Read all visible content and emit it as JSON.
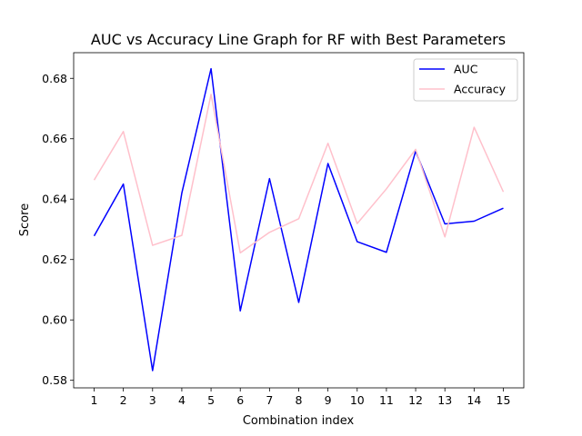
{
  "chart_data": {
    "type": "line",
    "title": "AUC vs Accuracy Line Graph for RF with Best Parameters",
    "xlabel": "Combination index",
    "ylabel": "Score",
    "x": [
      1,
      2,
      3,
      4,
      5,
      6,
      7,
      8,
      9,
      10,
      11,
      12,
      13,
      14,
      15
    ],
    "xlim": [
      0.3,
      15.7
    ],
    "ylim": [
      0.5775,
      0.6885
    ],
    "yticks": [
      0.58,
      0.6,
      0.62,
      0.64,
      0.66,
      0.68
    ],
    "ytick_labels": [
      "0.58",
      "0.60",
      "0.62",
      "0.64",
      "0.66",
      "0.68"
    ],
    "grid": false,
    "legend_position": "top-right",
    "series": [
      {
        "name": "AUC",
        "color": "#0000ff",
        "values": [
          0.6278,
          0.645,
          0.5832,
          0.642,
          0.6832,
          0.603,
          0.6468,
          0.6058,
          0.6518,
          0.6259,
          0.6224,
          0.6559,
          0.6318,
          0.6327,
          0.637
        ]
      },
      {
        "name": "Accuracy",
        "color": "#ffc0cb",
        "values": [
          0.6463,
          0.6624,
          0.6247,
          0.628,
          0.6747,
          0.6222,
          0.629,
          0.6335,
          0.6585,
          0.6319,
          0.6434,
          0.6565,
          0.6275,
          0.6638,
          0.6424
        ]
      }
    ]
  }
}
